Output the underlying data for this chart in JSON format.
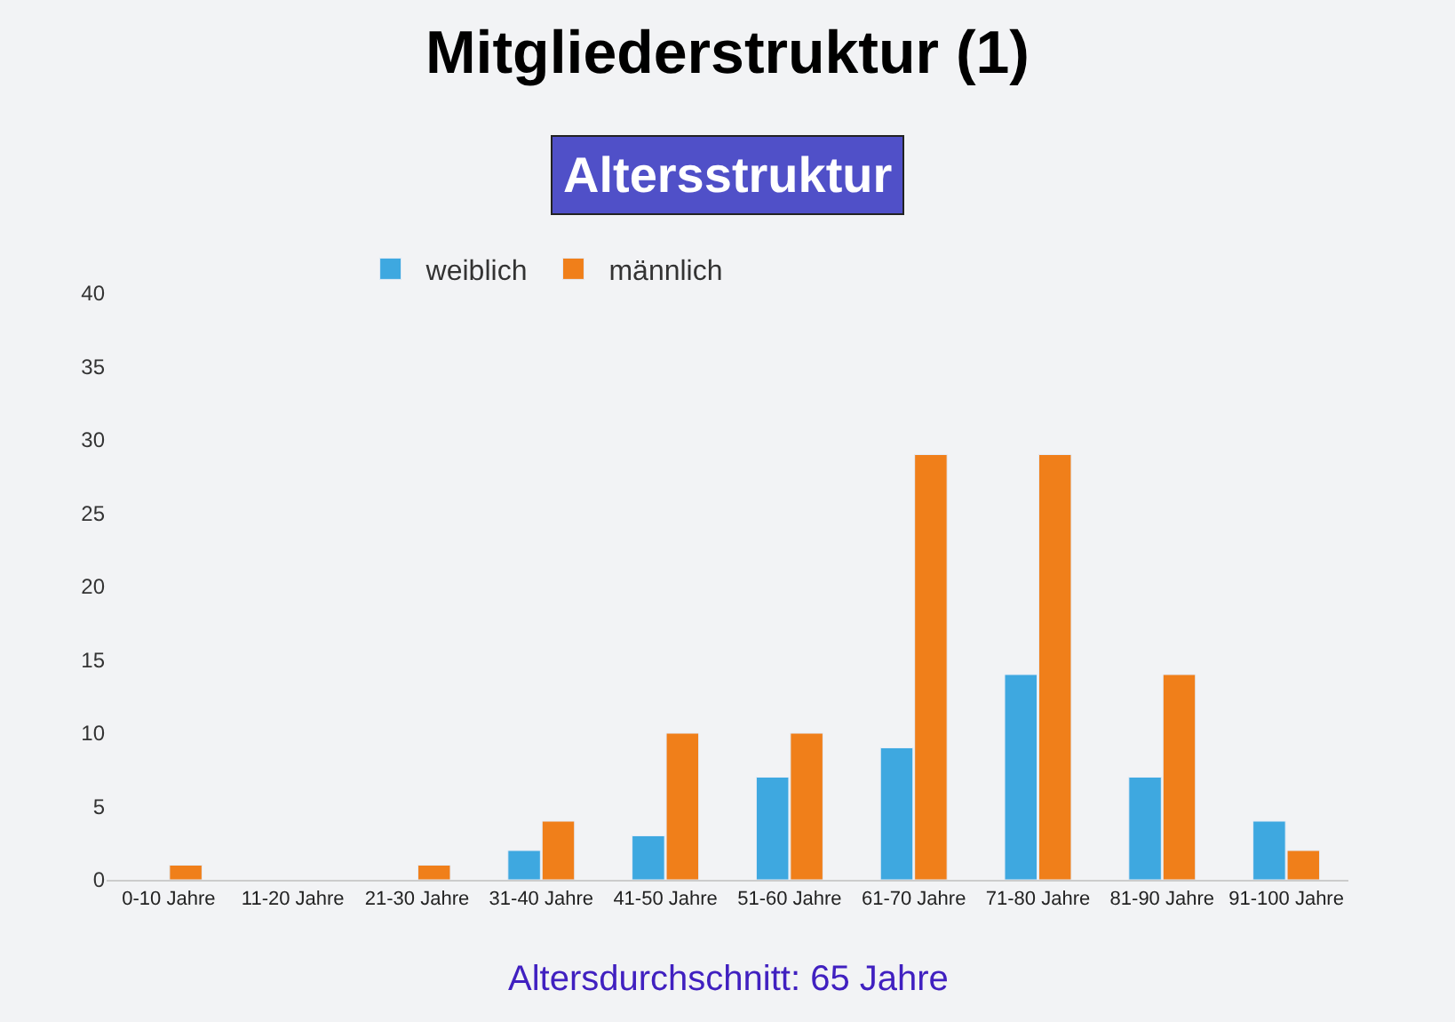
{
  "chart_data": {
    "type": "bar",
    "title": "Mitgliederstruktur (1)",
    "subtitle": "Altersstruktur",
    "categories": [
      "0-10 Jahre",
      "11-20 Jahre",
      "21-30 Jahre",
      "31-40 Jahre",
      "41-50 Jahre",
      "51-60 Jahre",
      "61-70 Jahre",
      "71-80 Jahre",
      "81-90 Jahre",
      "91-100 Jahre"
    ],
    "series": [
      {
        "name": "weiblich",
        "color": "#3ea8e0",
        "values": [
          null,
          null,
          null,
          2,
          3,
          7,
          9,
          14,
          7,
          4
        ]
      },
      {
        "name": "männlich",
        "color": "#f07f1a",
        "values": [
          1,
          null,
          1,
          4,
          10,
          10,
          29,
          29,
          14,
          2
        ]
      }
    ],
    "ylim": [
      0,
      40
    ],
    "yticks": [
      0,
      5,
      10,
      15,
      20,
      25,
      30,
      35,
      40
    ],
    "grid": false,
    "legend": "top left",
    "annotations": [
      "Altersdurchschnitt: 65 Jahre"
    ]
  }
}
